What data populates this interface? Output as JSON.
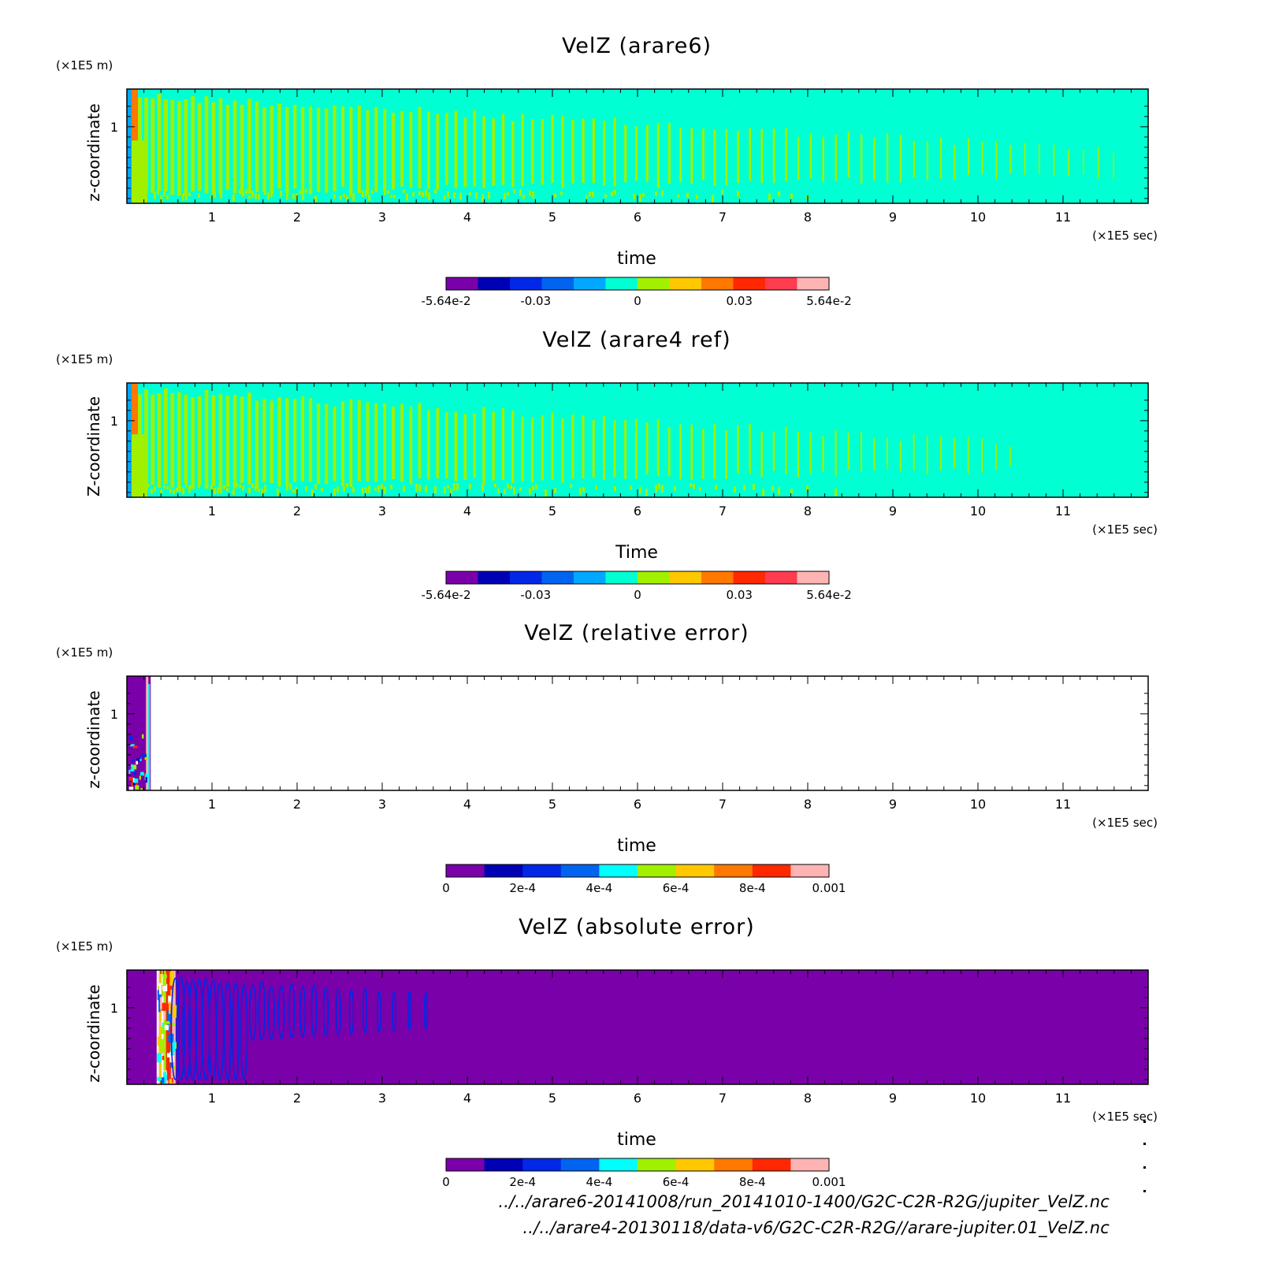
{
  "chart_data": [
    {
      "type": "heatmap",
      "title": "VelZ (arare6)",
      "xlabel": "time",
      "x_unit": "(×1E5 sec)",
      "ylabel": "z-coordinate",
      "y_unit": "(×1E5 m)",
      "xlim": [
        0,
        12
      ],
      "x_ticks": [
        "1",
        "2",
        "3",
        "4",
        "5",
        "6",
        "7",
        "8",
        "9",
        "10",
        "11"
      ],
      "y_ticks": [
        "1"
      ],
      "colorbar": {
        "levels": 11,
        "colors": [
          "#7a00aa",
          "#0000b4",
          "#0028e6",
          "#0064f0",
          "#00a8ff",
          "#00ffd2",
          "#a0f000",
          "#ffc800",
          "#ff7800",
          "#ff2800",
          "#ff3c50",
          "#ffb4b4"
        ],
        "tick_labels": [
          "-5.64e-2",
          "-0.03",
          "0",
          "0.03",
          "5.64e-2"
        ],
        "tick_values": [
          -0.0564,
          -0.03,
          0,
          0.03,
          0.0564
        ],
        "range": [
          -0.0564,
          0.0564
        ]
      },
      "field": {
        "background": "#00ffd2",
        "stripe_color": "#a0f000",
        "stripe_fade_end": 11.7,
        "hot_edge": "#ff7800"
      }
    },
    {
      "type": "heatmap",
      "title": "VelZ (arare4 ref)",
      "xlabel": "Time",
      "x_unit": "(×1E5 sec)",
      "ylabel": "Z-coordinate",
      "y_unit": "(×1E5 m)",
      "xlim": [
        0,
        12
      ],
      "x_ticks": [
        "1",
        "2",
        "3",
        "4",
        "5",
        "6",
        "7",
        "8",
        "9",
        "10",
        "11"
      ],
      "y_ticks": [
        "1"
      ],
      "colorbar": {
        "levels": 11,
        "colors": [
          "#7a00aa",
          "#0000b4",
          "#0028e6",
          "#0064f0",
          "#00a8ff",
          "#00ffd2",
          "#a0f000",
          "#ffc800",
          "#ff7800",
          "#ff2800",
          "#ff3c50",
          "#ffb4b4"
        ],
        "tick_labels": [
          "-5.64e-2",
          "-0.03",
          "0",
          "0.03",
          "5.64e-2"
        ],
        "tick_values": [
          -0.0564,
          -0.03,
          0,
          0.03,
          0.0564
        ],
        "range": [
          -0.0564,
          0.0564
        ]
      },
      "field": {
        "background": "#00ffd2",
        "stripe_color": "#a0f000",
        "stripe_fade_end": 10.4,
        "hot_edge": "#ff7800"
      }
    },
    {
      "type": "heatmap",
      "title": "VelZ (relative error)",
      "xlabel": "time",
      "x_unit": "(×1E5 sec)",
      "ylabel": "z-coordinate",
      "y_unit": "(×1E5 m)",
      "xlim": [
        0,
        12
      ],
      "x_ticks": [
        "1",
        "2",
        "3",
        "4",
        "5",
        "6",
        "7",
        "8",
        "9",
        "10",
        "11"
      ],
      "y_ticks": [
        "1"
      ],
      "colorbar": {
        "levels": 10,
        "colors": [
          "#7a00aa",
          "#0000b4",
          "#0028e6",
          "#0064f0",
          "#00ffff",
          "#a0f000",
          "#ffc800",
          "#ff7800",
          "#ff2800",
          "#ffb4b4"
        ],
        "tick_labels": [
          "0",
          "2e-4",
          "4e-4",
          "6e-4",
          "8e-4",
          "0.001"
        ],
        "tick_values": [
          0,
          0.0002,
          0.0004,
          0.0006,
          0.0008,
          0.001
        ],
        "range": [
          0,
          0.001
        ]
      },
      "field": {
        "background": "#ffffff",
        "active_until": 0.28,
        "active_color": "#7a00aa"
      }
    },
    {
      "type": "heatmap",
      "title": "VelZ (absolute error)",
      "xlabel": "time",
      "x_unit": "(×1E5 sec)",
      "ylabel": "z-coordinate",
      "y_unit": "(×1E5 m)",
      "xlim": [
        0,
        12
      ],
      "x_ticks": [
        "1",
        "2",
        "3",
        "4",
        "5",
        "6",
        "7",
        "8",
        "9",
        "10",
        "11"
      ],
      "y_ticks": [
        "1"
      ],
      "colorbar": {
        "levels": 10,
        "colors": [
          "#7a00aa",
          "#0000b4",
          "#0028e6",
          "#0064f0",
          "#00ffff",
          "#a0f000",
          "#ffc800",
          "#ff7800",
          "#ff2800",
          "#ffb4b4"
        ],
        "tick_labels": [
          "0",
          "2e-4",
          "4e-4",
          "6e-4",
          "8e-4",
          "0.001"
        ],
        "tick_values": [
          0,
          0.0002,
          0.0004,
          0.0006,
          0.0008,
          0.001
        ],
        "range": [
          0,
          0.001
        ]
      },
      "field": {
        "background": "#7a00aa",
        "blob_start": 0.35,
        "blob_end": 0.55,
        "stripe_color": "#0028e6",
        "stripe_end": 3.6
      }
    }
  ],
  "footer": {
    "path1": "../../arare6-20141008/run_20141010-1400/G2C-C2R-R2G/jupiter_VelZ.nc",
    "path2": "../../arare4-20130118/data-v6/G2C-C2R-R2G//arare-jupiter.01_VelZ.nc"
  }
}
